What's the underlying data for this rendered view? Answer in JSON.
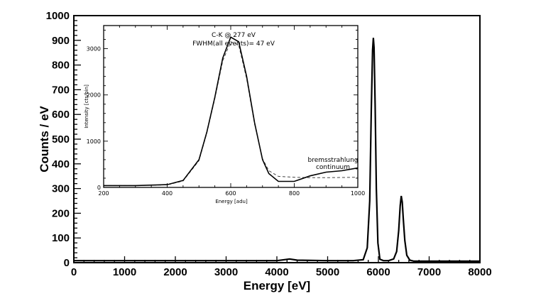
{
  "chart_data": [
    {
      "type": "line",
      "title": "",
      "xlabel": "Energy [eV]",
      "ylabel": "Counts / eV",
      "xlim": [
        0,
        8000
      ],
      "ylim": [
        0,
        1000
      ],
      "xticks": [
        "0",
        "1000",
        "2000",
        "3000",
        "4000",
        "5000",
        "6000",
        "7000",
        "8000"
      ],
      "yticks": [
        "0",
        "100",
        "200",
        "300",
        "400",
        "500",
        "600",
        "700",
        "800",
        "900",
        "1000"
      ],
      "grid": false,
      "series": [
        {
          "x": [
            0,
            500,
            1000,
            2000,
            3000,
            4000,
            4150,
            4250,
            4400,
            5000,
            5500,
            5700,
            5780,
            5830,
            5860,
            5885,
            5900,
            5915,
            5935,
            5960,
            5990,
            6030,
            6100,
            6200,
            6300,
            6360,
            6400,
            6430,
            6450,
            6470,
            6490,
            6520,
            6560,
            6620,
            6700,
            7000,
            8000
          ],
          "y": [
            8,
            8,
            8,
            8,
            8,
            8,
            12,
            15,
            10,
            8,
            8,
            12,
            60,
            250,
            620,
            860,
            910,
            870,
            640,
            300,
            80,
            14,
            8,
            8,
            15,
            45,
            130,
            230,
            270,
            245,
            180,
            90,
            30,
            10,
            6,
            6,
            6
          ]
        }
      ]
    },
    {
      "type": "line",
      "title": "",
      "xlabel": "Energy [adu]",
      "ylabel": "Intensity [cts/bin]",
      "xlim": [
        200,
        1000
      ],
      "ylim": [
        0,
        3500
      ],
      "xticks": [
        "200",
        "400",
        "600",
        "800",
        "1000"
      ],
      "yticks": [
        "0",
        "1000",
        "2000",
        "3000"
      ],
      "annotations": [
        "C-K @ 277 eV",
        "FWHM(all events)= 47 eV",
        "bremsstrahlung",
        "continuum"
      ],
      "series": [
        {
          "style": "solid",
          "x": [
            200,
            300,
            400,
            450,
            500,
            525,
            550,
            575,
            600,
            625,
            650,
            675,
            700,
            720,
            750,
            800,
            850,
            900,
            950,
            1000
          ],
          "y": [
            40,
            40,
            60,
            150,
            600,
            1200,
            1950,
            2800,
            3250,
            3150,
            2400,
            1400,
            600,
            300,
            130,
            130,
            250,
            330,
            360,
            420
          ]
        },
        {
          "style": "dashed",
          "x": [
            200,
            300,
            400,
            450,
            500,
            525,
            550,
            575,
            600,
            625,
            650,
            675,
            700,
            720,
            750,
            800,
            850,
            900,
            950,
            1000
          ],
          "y": [
            40,
            40,
            55,
            140,
            580,
            1180,
            1920,
            2740,
            3150,
            3080,
            2350,
            1370,
            620,
            360,
            240,
            220,
            210,
            210,
            215,
            220
          ]
        }
      ]
    }
  ]
}
